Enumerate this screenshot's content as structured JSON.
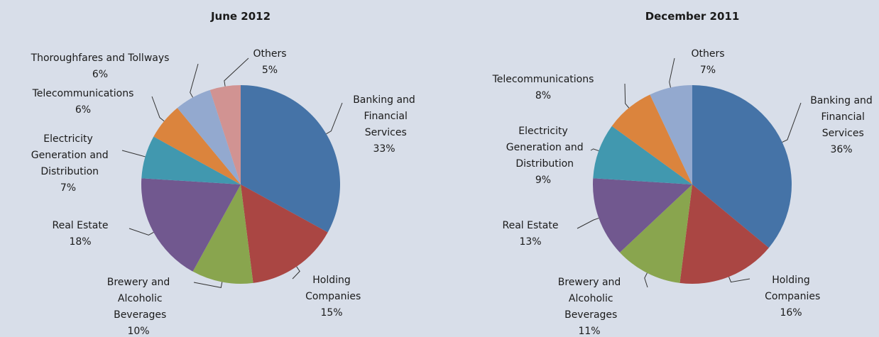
{
  "chart_data": [
    {
      "type": "pie",
      "title": "June 2012",
      "categories": [
        "Banking and Financial Services",
        "Holding Companies",
        "Brewery and Alcoholic Beverages",
        "Real Estate",
        "Electricity Generation and Distribution",
        "Telecommunications",
        "Thoroughfares and Tollways",
        "Others"
      ],
      "values": [
        33,
        15,
        10,
        18,
        7,
        6,
        6,
        5
      ],
      "value_labels": [
        "33%",
        "15%",
        "10%",
        "18%",
        "7%",
        "6%",
        "6%",
        "5%"
      ],
      "colors": [
        "#4573a7",
        "#aa4643",
        "#89a54e",
        "#71588f",
        "#4198af",
        "#db843d",
        "#93a9cf",
        "#d19392"
      ]
    },
    {
      "type": "pie",
      "title": "December 2011",
      "categories": [
        "Banking and Financial Services",
        "Holding Companies",
        "Brewery and Alcoholic Beverages",
        "Real Estate",
        "Electricity Generation and Distribution",
        "Telecommunications",
        "Others"
      ],
      "values": [
        36,
        16,
        11,
        13,
        9,
        8,
        7
      ],
      "value_labels": [
        "36%",
        "16%",
        "11%",
        "13%",
        "9%",
        "8%",
        "7%"
      ],
      "colors": [
        "#4573a7",
        "#aa4643",
        "#89a54e",
        "#71588f",
        "#4198af",
        "#db843d",
        "#93a9cf"
      ]
    }
  ]
}
